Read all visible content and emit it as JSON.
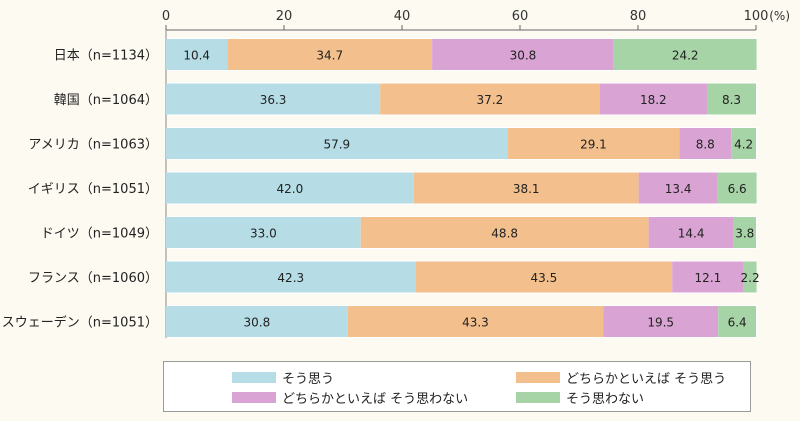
{
  "chart_data": {
    "type": "bar",
    "orientation": "horizontal",
    "stacked": true,
    "unit": "(%)",
    "xlim": [
      0,
      100
    ],
    "xticks": [
      "0",
      "20",
      "40",
      "60",
      "80",
      "100"
    ],
    "categories": [
      "日本（n=1134）",
      "韓国（n=1064）",
      "アメリカ（n=1063）",
      "イギリス（n=1051）",
      "ドイツ（n=1049）",
      "フランス（n=1060）",
      "スウェーデン（n=1051）"
    ],
    "series": [
      {
        "name": "そう思う",
        "color": "#b6dde6",
        "values": [
          10.4,
          36.3,
          57.9,
          42.0,
          33.0,
          42.3,
          30.8
        ]
      },
      {
        "name": "どちらかといえば そう思う",
        "color": "#f3c08d",
        "values": [
          34.7,
          37.2,
          29.1,
          38.1,
          48.8,
          43.5,
          43.3
        ]
      },
      {
        "name": "どちらかといえば そう思わない",
        "color": "#d9a4d4",
        "values": [
          30.8,
          18.2,
          8.8,
          13.4,
          14.4,
          12.1,
          19.5
        ]
      },
      {
        "name": "そう思わない",
        "color": "#a6d4a6",
        "values": [
          24.2,
          8.3,
          4.2,
          6.6,
          3.8,
          2.2,
          6.4
        ]
      }
    ],
    "value_labels": [
      [
        "10.4",
        "34.7",
        "30.8",
        "24.2"
      ],
      [
        "36.3",
        "37.2",
        "18.2",
        "8.3"
      ],
      [
        "57.9",
        "29.1",
        "8.8",
        "4.2"
      ],
      [
        "42.0",
        "38.1",
        "13.4",
        "6.6"
      ],
      [
        "33.0",
        "48.8",
        "14.4",
        "3.8"
      ],
      [
        "42.3",
        "43.5",
        "12.1",
        "2.2"
      ],
      [
        "30.8",
        "43.3",
        "19.5",
        "6.4"
      ]
    ],
    "legend": {
      "position": "bottom",
      "items": [
        {
          "label": "そう思う",
          "color": "#b6dde6"
        },
        {
          "label": "どちらかといえば そう思う",
          "color": "#f3c08d"
        },
        {
          "label": "どちらかといえば そう思わない",
          "color": "#d9a4d4"
        },
        {
          "label": "そう思わない",
          "color": "#a6d4a6"
        }
      ]
    }
  }
}
